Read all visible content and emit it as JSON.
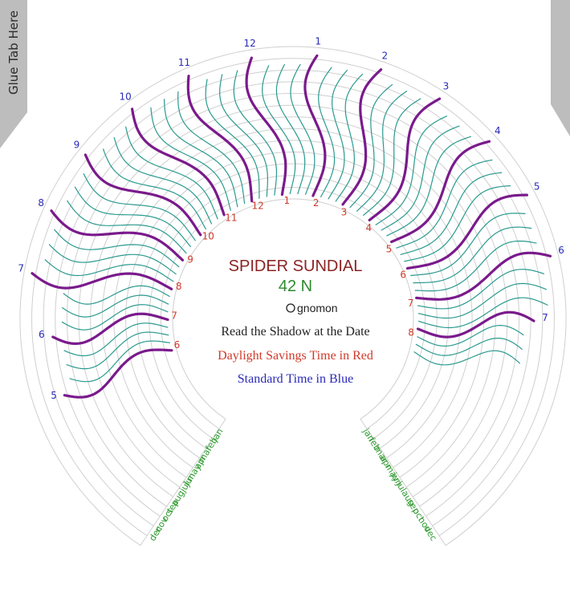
{
  "glue_tab_label": "Glue Tab Here",
  "title": "SPIDER SUNDIAL",
  "latitude": "42 N",
  "gnomon_label": "gnomon",
  "instructions": {
    "read": "Read the Shadow at the Date",
    "daylight": "Daylight Savings Time in Red",
    "standard": "Standard Time in Blue"
  },
  "colors": {
    "ring": "#cfcfcf",
    "quarter_hour": "#2a9a8e",
    "hour_line": "#7a1a8c",
    "standard_text": "#2a2ab8",
    "daylight_text": "#d03a2a",
    "month_text": "#2f9a2f",
    "title_text": "#8b2323",
    "latitude_text": "#2e8b2e",
    "glue_tab": "#bdbdbd"
  },
  "standard_hour_labels": [
    "5",
    "6",
    "7",
    "8",
    "9",
    "10",
    "11",
    "12",
    "1",
    "2",
    "3",
    "4",
    "5",
    "6",
    "7"
  ],
  "daylight_hour_labels": [
    "6",
    "7",
    "8",
    "9",
    "10",
    "11",
    "12",
    "1",
    "2",
    "3",
    "4",
    "5",
    "6",
    "7",
    "8"
  ],
  "months_left": [
    "jan",
    "feb",
    "mar",
    "apr",
    "may",
    "jun",
    "jul",
    "aug",
    "sep",
    "oct",
    "nov",
    "dec"
  ],
  "months_right": [
    "jan",
    "feb",
    "mar",
    "apr",
    "may",
    "jun",
    "jul",
    "aug",
    "sep",
    "oct",
    "nov",
    "dec"
  ]
}
